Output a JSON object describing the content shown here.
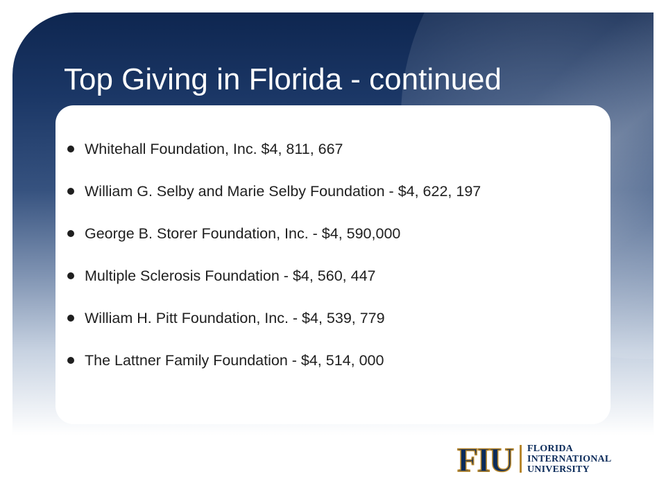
{
  "slide": {
    "title": "Top Giving in Florida - continued",
    "bullets": [
      "Whitehall Foundation, Inc. $4, 811, 667",
      "William G. Selby and Marie Selby Foundation - $4, 622, 197",
      "George B. Storer Foundation, Inc. - $4, 590,000",
      "Multiple Sclerosis Foundation - $4, 560, 447",
      "William H. Pitt Foundation, Inc. -  $4, 539, 779",
      "The Lattner Family Foundation - $4, 514, 000"
    ]
  },
  "logo": {
    "mark_text": "FIU",
    "line1": "FLORIDA",
    "line2": "INTERNATIONAL",
    "line3": "UNIVERSITY",
    "colors": {
      "navy": "#0b2b5a",
      "gold": "#b6862c"
    }
  },
  "colors": {
    "band_top": "#0e2650",
    "title_text": "#ffffff",
    "body_text": "#1f1f1f"
  }
}
